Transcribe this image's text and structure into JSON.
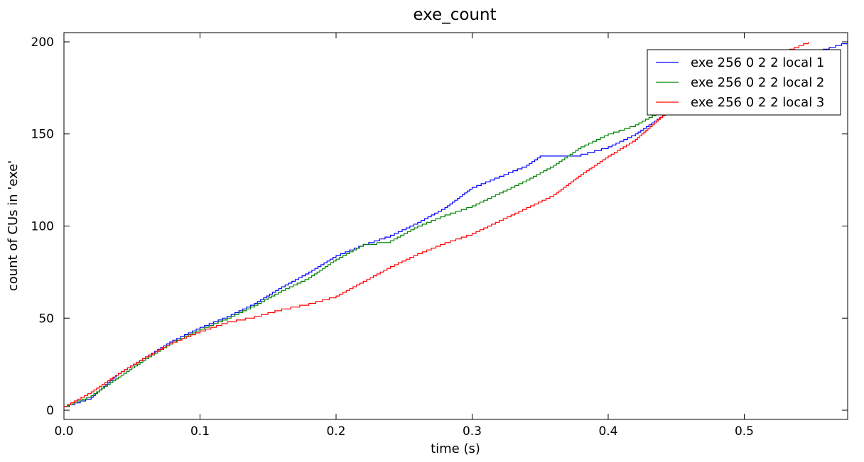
{
  "chart_data": {
    "type": "line",
    "title": "exe_count",
    "xlabel": "time (s)",
    "ylabel": "count of CUs in 'exe'",
    "xlim": [
      0,
      0.576
    ],
    "ylim": [
      -5,
      205
    ],
    "x_ticks": [
      0.0,
      0.1,
      0.2,
      0.3,
      0.4,
      0.5
    ],
    "x_tick_labels": [
      "0.0",
      "0.1",
      "0.2",
      "0.3",
      "0.4",
      "0.5"
    ],
    "y_ticks": [
      0,
      50,
      100,
      150,
      200
    ],
    "y_tick_labels": [
      "0",
      "50",
      "100",
      "150",
      "200"
    ],
    "grid": false,
    "legend_position": "top-right",
    "series": [
      {
        "name": "exe 256 0 2 2 local 1",
        "color": "#0000ff",
        "points": [
          [
            0.0,
            2
          ],
          [
            0.02,
            7
          ],
          [
            0.04,
            20
          ],
          [
            0.06,
            29
          ],
          [
            0.08,
            38
          ],
          [
            0.1,
            45
          ],
          [
            0.12,
            51
          ],
          [
            0.14,
            58
          ],
          [
            0.16,
            67
          ],
          [
            0.18,
            75
          ],
          [
            0.2,
            84
          ],
          [
            0.22,
            90
          ],
          [
            0.24,
            95
          ],
          [
            0.26,
            102
          ],
          [
            0.28,
            110
          ],
          [
            0.3,
            121
          ],
          [
            0.32,
            127
          ],
          [
            0.34,
            133
          ],
          [
            0.35,
            138
          ],
          [
            0.37,
            138
          ],
          [
            0.38,
            139
          ],
          [
            0.4,
            143
          ],
          [
            0.42,
            150
          ],
          [
            0.44,
            160
          ],
          [
            0.46,
            170
          ],
          [
            0.5,
            182
          ],
          [
            0.54,
            192
          ],
          [
            0.576,
            200
          ]
        ]
      },
      {
        "name": "exe 256 0 2 2 local 2",
        "color": "#008000",
        "points": [
          [
            0.0,
            2
          ],
          [
            0.02,
            8
          ],
          [
            0.04,
            18
          ],
          [
            0.06,
            28
          ],
          [
            0.08,
            37
          ],
          [
            0.1,
            44
          ],
          [
            0.12,
            50
          ],
          [
            0.14,
            57
          ],
          [
            0.16,
            65
          ],
          [
            0.18,
            72
          ],
          [
            0.2,
            82
          ],
          [
            0.22,
            90
          ],
          [
            0.24,
            92
          ],
          [
            0.26,
            100
          ],
          [
            0.28,
            106
          ],
          [
            0.3,
            111
          ],
          [
            0.32,
            118
          ],
          [
            0.34,
            125
          ],
          [
            0.36,
            133
          ],
          [
            0.38,
            143
          ],
          [
            0.4,
            150
          ],
          [
            0.42,
            155
          ],
          [
            0.44,
            163
          ],
          [
            0.46,
            167
          ],
          [
            0.5,
            178
          ],
          [
            0.54,
            190
          ]
        ]
      },
      {
        "name": "exe 256 0 2 2 local 3",
        "color": "#ff0000",
        "points": [
          [
            0.0,
            2
          ],
          [
            0.02,
            10
          ],
          [
            0.04,
            20
          ],
          [
            0.06,
            29
          ],
          [
            0.08,
            37
          ],
          [
            0.1,
            43
          ],
          [
            0.12,
            48
          ],
          [
            0.14,
            51
          ],
          [
            0.16,
            55
          ],
          [
            0.18,
            58
          ],
          [
            0.2,
            62
          ],
          [
            0.22,
            70
          ],
          [
            0.24,
            78
          ],
          [
            0.26,
            85
          ],
          [
            0.28,
            91
          ],
          [
            0.3,
            96
          ],
          [
            0.32,
            103
          ],
          [
            0.34,
            110
          ],
          [
            0.36,
            117
          ],
          [
            0.38,
            128
          ],
          [
            0.4,
            138
          ],
          [
            0.42,
            147
          ],
          [
            0.44,
            160
          ],
          [
            0.46,
            170
          ],
          [
            0.5,
            183
          ],
          [
            0.53,
            195
          ],
          [
            0.547,
            200
          ]
        ]
      }
    ]
  }
}
